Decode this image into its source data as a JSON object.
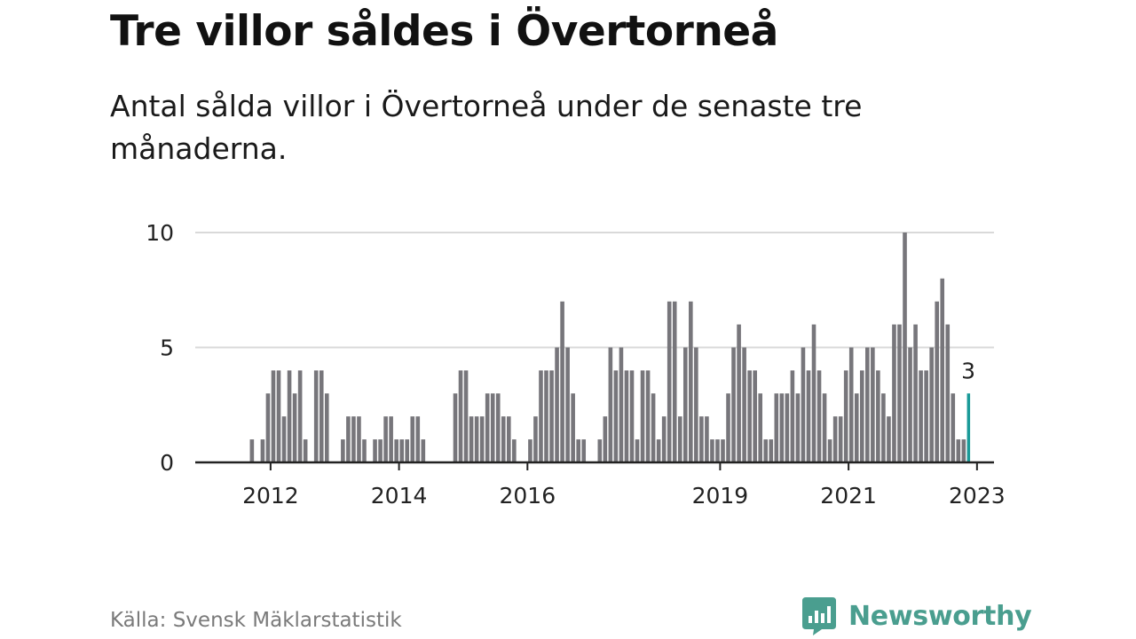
{
  "header": {
    "title": "Tre villor såldes i Övertorneå",
    "subtitle": "Antal sålda villor i Övertorneå under de senaste tre månaderna."
  },
  "footer": {
    "source": "Källa: Svensk Mäklarstatistik",
    "brand": "Newsworthy"
  },
  "colors": {
    "bar": "#77767b",
    "highlight": "#1a9a98",
    "grid": "#d9d9d9",
    "axis": "#222222",
    "brand": "#4a9e8f"
  },
  "chart_data": {
    "type": "bar",
    "title": "Tre villor såldes i Övertorneå",
    "subtitle": "Antal sålda villor i Övertorneå under de senaste tre månaderna.",
    "xlabel": "",
    "ylabel": "",
    "ylim": [
      0,
      10
    ],
    "yticks": [
      "0",
      "5",
      "10"
    ],
    "grid": true,
    "start": "2012-01",
    "values": [
      0,
      0,
      1,
      0,
      1,
      3,
      4,
      4,
      2,
      4,
      3,
      4,
      1,
      0,
      4,
      4,
      3,
      0,
      0,
      1,
      2,
      2,
      2,
      1,
      0,
      1,
      1,
      2,
      2,
      1,
      1,
      1,
      2,
      2,
      1,
      0,
      0,
      0,
      0,
      0,
      3,
      4,
      4,
      2,
      2,
      2,
      3,
      3,
      3,
      2,
      2,
      1,
      0,
      0,
      1,
      2,
      4,
      4,
      4,
      5,
      7,
      5,
      3,
      1,
      1,
      0,
      0,
      1,
      2,
      5,
      4,
      5,
      4,
      4,
      1,
      4,
      4,
      3,
      1,
      2,
      7,
      7,
      2,
      5,
      7,
      5,
      2,
      2,
      1,
      1,
      1,
      3,
      5,
      6,
      5,
      4,
      4,
      3,
      1,
      1,
      3,
      3,
      3,
      4,
      3,
      5,
      4,
      6,
      4,
      3,
      1,
      2,
      2,
      4,
      5,
      3,
      4,
      5,
      5,
      4,
      3,
      2,
      6,
      6,
      10,
      5,
      6,
      4,
      4,
      5,
      7,
      8,
      6,
      3,
      1,
      1,
      3
    ],
    "highlight_last": true,
    "annotation": "3",
    "xtick_labels": [
      {
        "label": "2012",
        "index": 6
      },
      {
        "label": "2014",
        "index": 30
      },
      {
        "label": "2016",
        "index": 54
      },
      {
        "label": "2019",
        "index": 90
      },
      {
        "label": "2021",
        "index": 114
      },
      {
        "label": "2023",
        "index": 138
      }
    ]
  }
}
